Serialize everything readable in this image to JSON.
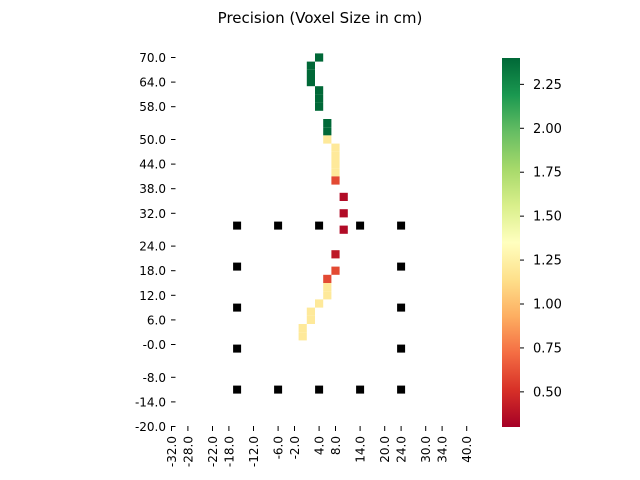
{
  "chart_data": {
    "type": "heatmap",
    "title": "Precision (Voxel Size in cm)",
    "xlabel": "",
    "ylabel": "",
    "y_tick_labels": [
      "70.0",
      "64.0",
      "58.0",
      "50.0",
      "44.0",
      "38.0",
      "32.0",
      "24.0",
      "18.0",
      "12.0",
      "6.0",
      "-0.0",
      "-8.0",
      "-14.0",
      "-20.0"
    ],
    "x_tick_labels": [
      "-32.0",
      "-28.0",
      "-22.0",
      "-18.0",
      "-12.0",
      "-6.0",
      "-2.0",
      "4.0",
      "8.0",
      "14.0",
      "20.0",
      "24.0",
      "30.0",
      "34.0",
      "40.0"
    ],
    "colorbar": {
      "colormap": "RdYlGn",
      "vmin": 0.3,
      "vmax": 2.4,
      "ticks": [
        "0.50",
        "0.75",
        "1.00",
        "1.25",
        "1.50",
        "1.75",
        "2.00",
        "2.25"
      ],
      "tick_values": [
        0.5,
        0.75,
        1.0,
        1.25,
        1.5,
        1.75,
        2.0,
        2.25
      ]
    },
    "cells": [
      {
        "x": 4.0,
        "y": 70.0,
        "value": 2.4
      },
      {
        "x": 2.0,
        "y": 68.0,
        "value": 2.4
      },
      {
        "x": 2.0,
        "y": 66.0,
        "value": 2.4
      },
      {
        "x": 2.0,
        "y": 64.0,
        "value": 2.4
      },
      {
        "x": 4.0,
        "y": 62.0,
        "value": 2.4
      },
      {
        "x": 4.0,
        "y": 60.0,
        "value": 2.4
      },
      {
        "x": 4.0,
        "y": 58.0,
        "value": 2.4
      },
      {
        "x": 6.0,
        "y": 54.0,
        "value": 2.4
      },
      {
        "x": 6.0,
        "y": 52.0,
        "value": 2.4
      },
      {
        "x": 6.0,
        "y": 50.0,
        "value": 1.2
      },
      {
        "x": 8.0,
        "y": 48.0,
        "value": 1.2
      },
      {
        "x": 8.0,
        "y": 46.0,
        "value": 1.2
      },
      {
        "x": 8.0,
        "y": 44.0,
        "value": 1.2
      },
      {
        "x": 8.0,
        "y": 42.0,
        "value": 1.2
      },
      {
        "x": 8.0,
        "y": 40.0,
        "value": 0.6
      },
      {
        "x": 10.0,
        "y": 36.0,
        "value": 0.35
      },
      {
        "x": 10.0,
        "y": 32.0,
        "value": 0.35
      },
      {
        "x": 10.0,
        "y": 28.0,
        "value": 0.35
      },
      {
        "x": 8.0,
        "y": 22.0,
        "value": 0.4
      },
      {
        "x": 8.0,
        "y": 18.0,
        "value": 0.6
      },
      {
        "x": 6.0,
        "y": 16.0,
        "value": 0.6
      },
      {
        "x": 6.0,
        "y": 14.0,
        "value": 1.2
      },
      {
        "x": 6.0,
        "y": 12.0,
        "value": 1.2
      },
      {
        "x": 4.0,
        "y": 10.0,
        "value": 1.2
      },
      {
        "x": 2.0,
        "y": 8.0,
        "value": 1.2
      },
      {
        "x": 2.0,
        "y": 6.0,
        "value": 1.2
      },
      {
        "x": 0.0,
        "y": 4.0,
        "value": 1.2
      },
      {
        "x": 0.0,
        "y": 2.0,
        "value": 1.2
      }
    ],
    "markers": {
      "color": "#000000",
      "points": [
        [
          -16.0,
          29.0
        ],
        [
          -6.0,
          29.0
        ],
        [
          4.0,
          29.0
        ],
        [
          14.0,
          29.0
        ],
        [
          24.0,
          29.0
        ],
        [
          -16.0,
          19.0
        ],
        [
          24.0,
          19.0
        ],
        [
          -16.0,
          9.0
        ],
        [
          24.0,
          9.0
        ],
        [
          -16.0,
          -1.0
        ],
        [
          24.0,
          -1.0
        ],
        [
          -16.0,
          -11.0
        ],
        [
          -6.0,
          -11.0
        ],
        [
          4.0,
          -11.0
        ],
        [
          14.0,
          -11.0
        ],
        [
          24.0,
          -11.0
        ]
      ]
    }
  }
}
